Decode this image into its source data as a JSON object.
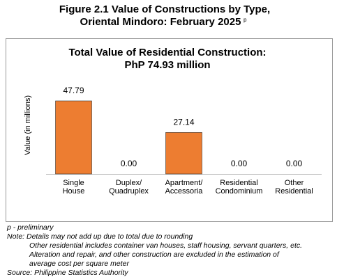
{
  "chart_data": {
    "type": "bar",
    "title": [
      "Figure 2.1 Value of Constructions by Type,",
      "Oriental Mindoro: February 2025"
    ],
    "title_superscript": "p",
    "subtitle": [
      "Total Value of Residential Construction:",
      "PhP 74.93 million"
    ],
    "y_label": "Value (in millions)",
    "categories": [
      [
        "Single",
        "House"
      ],
      [
        "Duplex/",
        "Quadruplex"
      ],
      [
        "Apartment/",
        "Accessoria"
      ],
      [
        "Residential",
        "Condominium"
      ],
      [
        "Other",
        "Residential"
      ]
    ],
    "values": [
      47.79,
      0,
      27.14,
      0,
      0
    ],
    "value_labels": [
      "47.79",
      "0.00",
      "27.14",
      "0.00",
      "0.00"
    ],
    "color": "#ed7d31",
    "notes": [
      "p - preliminary",
      "Note: Details may not add up due to total due to rounding",
      "Other residential includes container van houses, staff housing, servant quarters, etc.",
      "Alteration and repair, and other construction are excluded in the estimation of",
      "average cost per square meter",
      "Source: Philippine Statistics Authority"
    ]
  }
}
